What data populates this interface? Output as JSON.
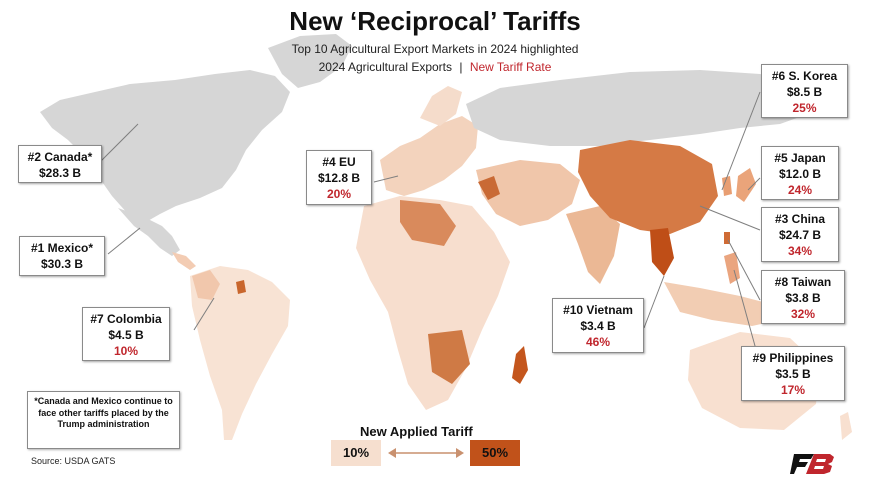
{
  "title": "New ‘Reciprocal’ Tariffs",
  "subtitle_line1": "Top 10 Agricultural Export Markets in 2024 highlighted",
  "subtitle_line2_exports": "2024 Agricultural Exports",
  "subtitle_line2_separator": "|",
  "subtitle_line2_rate": "New Tariff Rate",
  "markets": [
    {
      "rank_label": "#2 Canada*",
      "exports": "$28.3 B",
      "rate": ""
    },
    {
      "rank_label": "#1 Mexico*",
      "exports": "$30.3 B",
      "rate": ""
    },
    {
      "rank_label": "#7 Colombia",
      "exports": "$4.5 B",
      "rate": "10%"
    },
    {
      "rank_label": "#4 EU",
      "exports": "$12.8 B",
      "rate": "20%"
    },
    {
      "rank_label": "#6 S. Korea",
      "exports": "$8.5 B",
      "rate": "25%"
    },
    {
      "rank_label": "#5 Japan",
      "exports": "$12.0 B",
      "rate": "24%"
    },
    {
      "rank_label": "#3 China",
      "exports": "$24.7 B",
      "rate": "34%"
    },
    {
      "rank_label": "#8 Taiwan",
      "exports": "$3.8 B",
      "rate": "32%"
    },
    {
      "rank_label": "#10 Vietnam",
      "exports": "$3.4 B",
      "rate": "46%"
    },
    {
      "rank_label": "#9 Philippines",
      "exports": "$3.5 B",
      "rate": "17%"
    }
  ],
  "note": "*Canada and Mexico continue to face other tariffs placed by the Trump administration",
  "source": "Source: USDA GATS",
  "legend": {
    "title": "New Applied Tariff",
    "low_label": "10%",
    "high_label": "50%",
    "low_color": "#f6dfcf",
    "high_color": "#c1521a"
  },
  "colors": {
    "no_tariff_land": "#d4d4d4",
    "rate_red": "#c0262d",
    "logo_red": "#c0262d",
    "logo_black": "#111111"
  },
  "logo_icon": "fb-logo-icon"
}
